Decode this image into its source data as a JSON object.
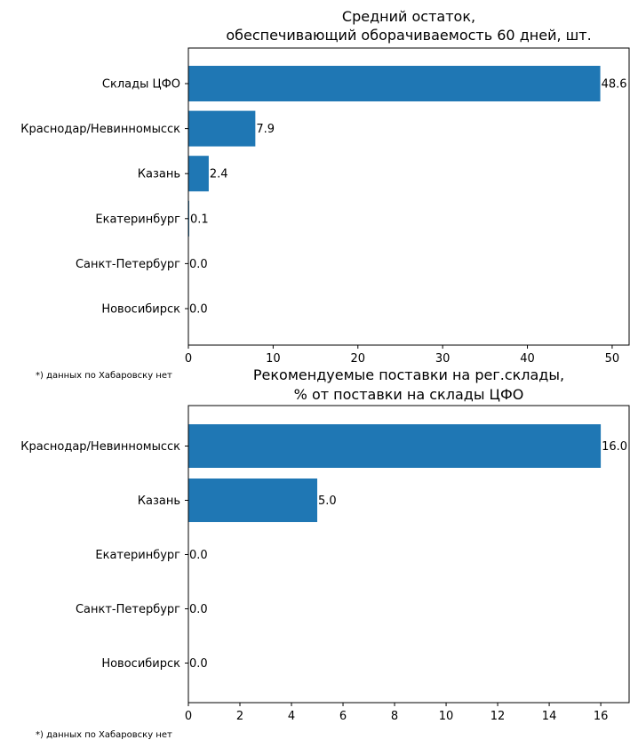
{
  "chart_data": [
    {
      "type": "bar",
      "orientation": "horizontal",
      "title_lines": [
        "Средний остаток,",
        "обеспечивающий оборачиваемость 60 дней, шт."
      ],
      "categories": [
        "Склады ЦФО",
        "Краснодар/Невинномысск",
        "Казань",
        "Екатеринбург",
        "Санкт-Петербург",
        "Новосибирск"
      ],
      "values": [
        48.6,
        7.9,
        2.4,
        0.1,
        0.0,
        0.0
      ],
      "value_labels": [
        "48.6",
        "7.9",
        "2.4",
        "0.1",
        "0.0",
        "0.0"
      ],
      "xlim": [
        0,
        52
      ],
      "xticks": [
        0,
        10,
        20,
        30,
        40,
        50
      ],
      "xtick_labels": [
        "0",
        "10",
        "20",
        "30",
        "40",
        "50"
      ],
      "bar_color": "#1f77b4",
      "grid": false,
      "footnote": "*) данных по Хабаровску нет"
    },
    {
      "type": "bar",
      "orientation": "horizontal",
      "title_lines": [
        "Рекомендуемые поставки на рег.склады,",
        "% от поставки на склады ЦФО"
      ],
      "categories": [
        "Краснодар/Невинномысск",
        "Казань",
        "Екатеринбург",
        "Санкт-Петербург",
        "Новосибирск"
      ],
      "values": [
        16.0,
        5.0,
        0.0,
        0.0,
        0.0
      ],
      "value_labels": [
        "16.0",
        "5.0",
        "0.0",
        "0.0",
        "0.0"
      ],
      "xlim": [
        0,
        17.1
      ],
      "xticks": [
        0,
        2,
        4,
        6,
        8,
        10,
        12,
        14,
        16
      ],
      "xtick_labels": [
        "0",
        "2",
        "4",
        "6",
        "8",
        "10",
        "12",
        "14",
        "16"
      ],
      "bar_color": "#1f77b4",
      "grid": false,
      "footnote": "*) данных по Хабаровску нет"
    }
  ]
}
